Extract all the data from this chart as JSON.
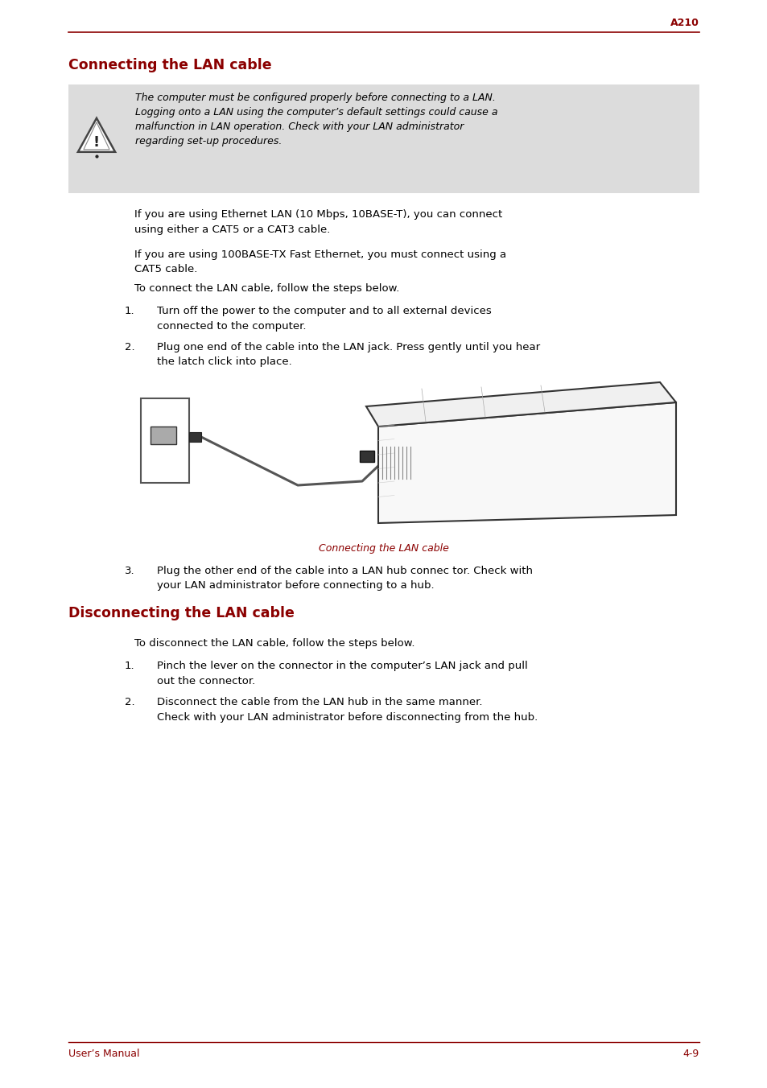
{
  "page_width": 9.54,
  "page_height": 13.52,
  "bg_color": "#ffffff",
  "top_label": "A210",
  "top_label_color": "#8B0000",
  "top_line_color": "#8B0000",
  "section1_title": "Connecting the LAN cable",
  "section1_title_color": "#8B0000",
  "warning_box_color": "#DCDCDC",
  "warning_text_line1": "The computer must be configured properly before connecting to a LAN.",
  "warning_text_line2": "Logging onto a LAN using the computer’s default settings could cause a",
  "warning_text_line3": "malfunction in LAN operation. Check with your LAN administrator",
  "warning_text_line4": "regarding set-up procedures.",
  "body_text_color": "#000000",
  "para1": "If you are using Ethernet LAN (10 Mbps, 10BASE-T), you can connect\nusing either a CAT5 or a CAT3 cable.",
  "para2": "If you are using 100BASE-TX Fast Ethernet, you must connect using a\nCAT5 cable.",
  "para3": "To connect the LAN cable, follow the steps below.",
  "step1": "Turn off the power to the computer and to all external devices\n    connected to the computer.",
  "step2": "Plug one end of the cable into the LAN jack. Press gently until you hear\n    the latch click into place.",
  "step3": "Plug the other end of the cable into a LAN hub connec tor. Check with\nyour LAN administrator before connecting to a hub.",
  "image_caption": "Connecting the LAN cable",
  "image_caption_color": "#8B0000",
  "section2_title": "Disconnecting the LAN cable",
  "section2_title_color": "#8B0000",
  "dis_para1": "To disconnect the LAN cable, follow the steps below.",
  "dis_step1": "Pinch the lever on the connector in the computer’s LAN jack and pull\n    out the connector.",
  "dis_step2": "Disconnect the cable from the LAN hub in the same manner.\n    Check with your LAN administrator before disconnecting from the hub.",
  "footer_left": "User’s Manual",
  "footer_right": "4-9",
  "footer_color": "#8B0000",
  "footer_line_color": "#8B0000"
}
